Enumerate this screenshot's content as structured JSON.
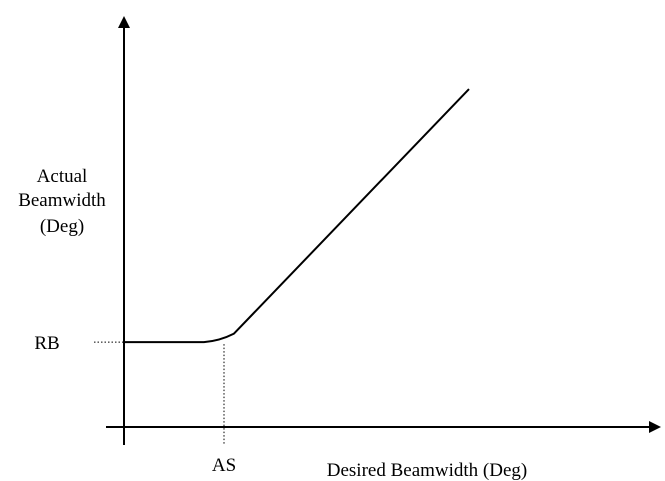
{
  "chart_data": {
    "type": "line",
    "title": "",
    "xlabel": "Desired Beamwidth (Deg)",
    "ylabel": [
      "Actual",
      "Beamwidth",
      "(Deg)"
    ],
    "ticks": {
      "x": [
        {
          "label": "AS",
          "value": 1.0
        }
      ],
      "y": [
        {
          "label": "RB",
          "value": 1.0
        }
      ]
    },
    "xlim": [
      0,
      5
    ],
    "ylim": [
      0,
      4.5
    ],
    "grid": false,
    "legend": "none",
    "series": [
      {
        "x": [
          0,
          0.8,
          0.9,
          1.0,
          1.1,
          3.45
        ],
        "y": [
          1.0,
          1.0,
          1.01,
          1.04,
          1.1,
          3.98
        ]
      }
    ],
    "reference_lines": [
      {
        "orientation": "horizontal",
        "value": 1.0,
        "style": "dotted"
      },
      {
        "orientation": "vertical",
        "value": 1.0,
        "style": "dotted"
      }
    ],
    "colors": {
      "line": "#000000",
      "axis": "#000000"
    }
  }
}
